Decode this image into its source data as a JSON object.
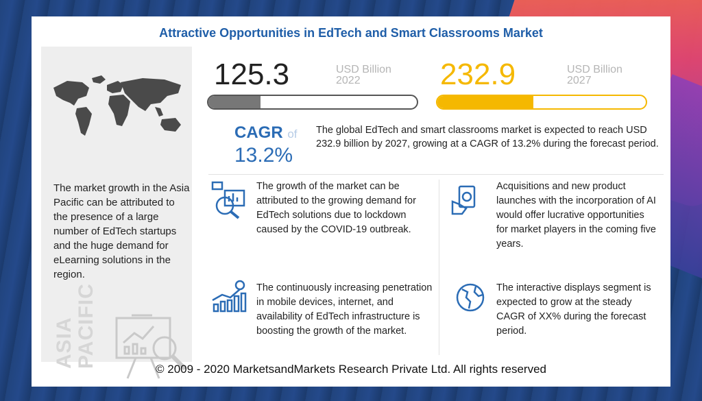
{
  "title": "Attractive Opportunities in EdTech and Smart Classrooms Market",
  "left_panel": {
    "text": "The market growth in the Asia Pacific can be attributed to the presence of a large number of EdTech startups and the huge demand for eLearning solutions in the region.",
    "region_line1": "ASIA",
    "region_line2": "PACIFIC",
    "map_icon": "world-map-icon",
    "chart_icon": "presentation-analytics-icon"
  },
  "stat_2022": {
    "value": "125.3",
    "unit": "USD Billion",
    "year": "2022",
    "fill": 0.25
  },
  "stat_2027": {
    "value": "232.9",
    "unit": "USD Billion",
    "year": "2027",
    "fill": 0.46
  },
  "cagr": {
    "label": "CAGR",
    "of": "of",
    "value": "13.2%",
    "text": "The global EdTech and smart classrooms market is expected to reach USD 232.9 billion by 2027, growing at a CAGR of 13.2% during the forecast period."
  },
  "items": [
    {
      "icon": "magnifier-analytics-icon",
      "text": "The growth of the market can be attributed to the growing demand for EdTech solutions due to lockdown caused by the COVID-19 outbreak."
    },
    {
      "icon": "money-hand-icon",
      "text": "Acquisitions and new product launches with the incorporation of AI would offer lucrative opportunities for market players in the coming five years."
    },
    {
      "icon": "growth-bars-dollar-icon",
      "text": "The continuously increasing penetration in mobile devices, internet, and availability of EdTech infrastructure is boosting the growth of the market."
    },
    {
      "icon": "globe-icon",
      "text": "The interactive displays segment is expected to grow at the steady CAGR of XX% during the forecast period."
    }
  ],
  "footer": "© 2009 - 2020 MarketsandMarkets Research Private Ltd. All rights reserved",
  "colors": {
    "title": "#1f5ea8",
    "gold": "#f5b800",
    "cagr": "#2b6cb5",
    "icon": "#2b6cb5"
  }
}
